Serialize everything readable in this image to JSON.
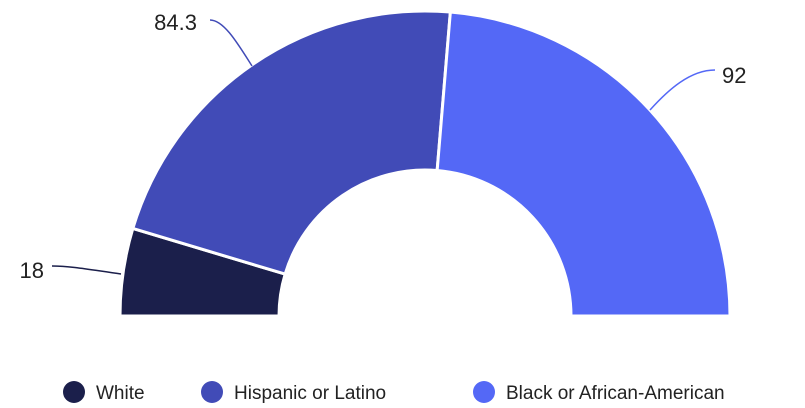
{
  "chart_data": {
    "type": "pie",
    "subtype": "semi-donut",
    "title": "",
    "categories": [
      "White",
      "Hispanic or Latino",
      "Black or African-American"
    ],
    "values": [
      18,
      84.3,
      92
    ],
    "value_labels": [
      "18",
      "84.3",
      "92"
    ],
    "colors": [
      "#1b1f4b",
      "#414bb7",
      "#5468f6"
    ],
    "legend": {
      "position": "bottom"
    }
  }
}
